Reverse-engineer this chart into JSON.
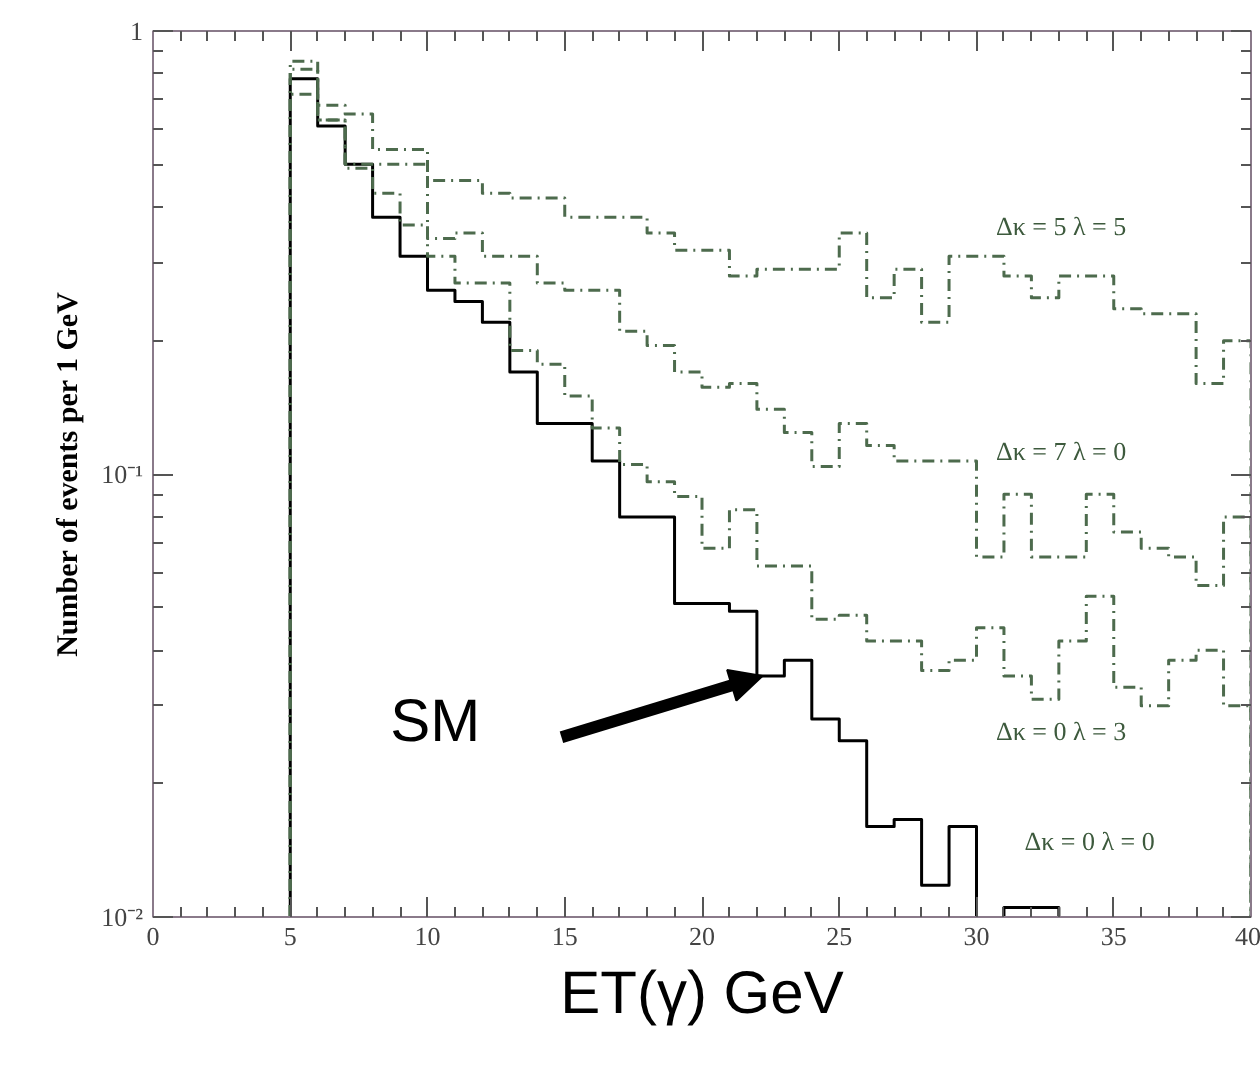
{
  "chart_data": {
    "type": "histogram",
    "xlabel": "ET(γ) GeV",
    "ylabel": "Number of events per 1 GeV",
    "bins": [
      5,
      6,
      7,
      8,
      9,
      10,
      11,
      12,
      13,
      14,
      15,
      16,
      17,
      18,
      19,
      20,
      21,
      22,
      23,
      24,
      25,
      26,
      27,
      28,
      29,
      30,
      31,
      32,
      33,
      34,
      35,
      36,
      37,
      38,
      39,
      40
    ],
    "series": [
      {
        "color": "#000000",
        "line_style": "solid",
        "bins": [
          5,
          6,
          7,
          8,
          9,
          10,
          11,
          12,
          13,
          14,
          15,
          16,
          17,
          18,
          19,
          20,
          21,
          22,
          23,
          24,
          25,
          26,
          27,
          28,
          29,
          30,
          31,
          32,
          33
        ],
        "values": [
          0.78,
          0.61,
          0.5,
          0.38,
          0.31,
          0.26,
          0.245,
          0.22,
          0.17,
          0.13,
          0.13,
          0.107,
          0.08,
          0.08,
          0.051,
          0.051,
          0.049,
          0.035,
          0.038,
          0.028,
          0.025,
          0.016,
          0.0166,
          0.0118,
          0.016,
          null,
          0.0105,
          0.0105
        ]
      },
      {
        "color": "#4d6b4d",
        "line_style": "dashed",
        "values": [
          0.72,
          0.63,
          0.49,
          0.43,
          0.365,
          0.31,
          0.27,
          0.27,
          0.19,
          0.177,
          0.15,
          0.127,
          0.105,
          0.096,
          0.089,
          0.068,
          0.083,
          0.062,
          0.062,
          0.047,
          0.048,
          0.042,
          0.042,
          0.036,
          0.038,
          0.045,
          0.035,
          0.031,
          0.042,
          0.053,
          0.033,
          0.03,
          0.038,
          0.04,
          0.03
        ]
      },
      {
        "color": "#4d6b4d",
        "line_style": "dashed",
        "values": [
          0.82,
          0.63,
          0.5,
          0.5,
          0.5,
          0.34,
          0.35,
          0.31,
          0.31,
          0.27,
          0.26,
          0.26,
          0.21,
          0.195,
          0.17,
          0.157,
          0.16,
          0.14,
          0.124,
          0.104,
          0.13,
          0.116,
          0.107,
          0.107,
          0.107,
          0.065,
          0.09,
          0.065,
          0.065,
          0.09,
          0.074,
          0.068,
          0.065,
          0.056,
          0.08
        ]
      },
      {
        "color": "#4d6b4d",
        "line_style": "dashed",
        "values": [
          0.855,
          0.68,
          0.65,
          0.54,
          0.54,
          0.46,
          0.46,
          0.43,
          0.42,
          0.42,
          0.38,
          0.38,
          0.38,
          0.35,
          0.32,
          0.32,
          0.28,
          0.29,
          0.29,
          0.29,
          0.35,
          0.25,
          0.29,
          0.22,
          0.31,
          0.31,
          0.28,
          0.25,
          0.28,
          0.28,
          0.236,
          0.23,
          0.23,
          0.16,
          0.2
        ]
      }
    ],
    "annotations": [
      "Δκ = 5  λ = 5",
      "Δκ = 7  λ = 0",
      "Δκ = 0  λ = 3",
      "Δκ = 0  λ = 0",
      "SM"
    ],
    "xlim": [
      0,
      40
    ],
    "xticks": [
      0,
      5,
      10,
      15,
      20,
      25,
      30,
      35,
      40
    ],
    "ylim": [
      0.01,
      1
    ],
    "yticks": [
      {
        "value": 0.01,
        "label": "10⁻²"
      },
      {
        "value": 0.1,
        "label": "10⁻¹"
      },
      1
    ],
    "log": "y",
    "grid": false
  }
}
